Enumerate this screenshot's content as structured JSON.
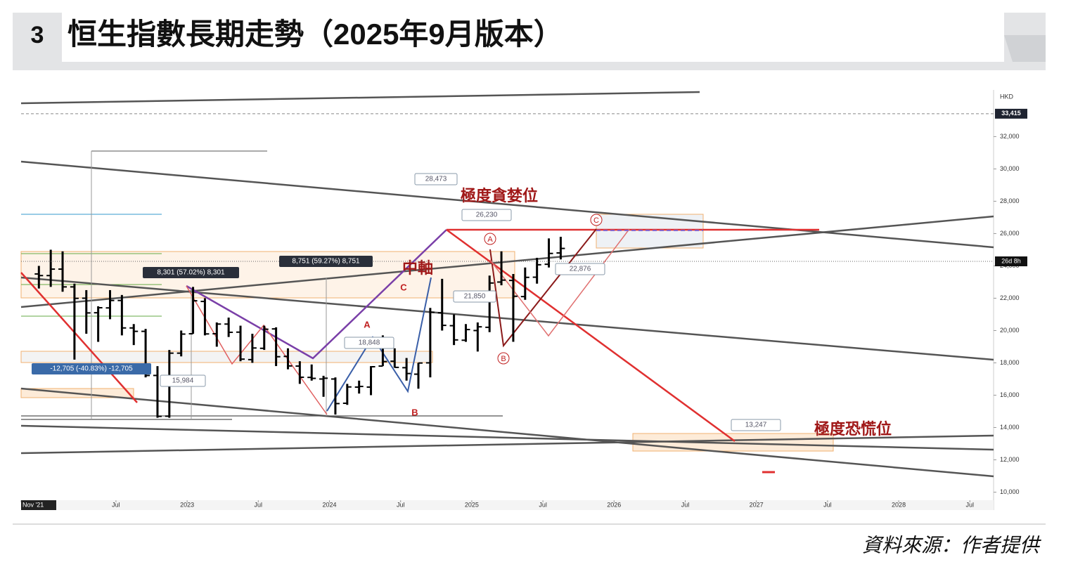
{
  "figure_number": "3",
  "title": "恒生指數長期走勢（2025年9月版本）",
  "source": "資料來源：作者提供",
  "chart_data": {
    "type": "ohlc",
    "currency": "HKD",
    "color": "#000000",
    "x": [
      "2021-12",
      "2022-01",
      "2022-02",
      "2022-03",
      "2022-04",
      "2022-05",
      "2022-06",
      "2022-07",
      "2022-08",
      "2022-09",
      "2022-10",
      "2022-11",
      "2022-12",
      "2023-01",
      "2023-02",
      "2023-03",
      "2023-04",
      "2023-05",
      "2023-06",
      "2023-07",
      "2023-08",
      "2023-09",
      "2023-10",
      "2023-11",
      "2023-12",
      "2024-01",
      "2024-02",
      "2024-03",
      "2024-04",
      "2024-05",
      "2024-06",
      "2024-07",
      "2024-08",
      "2024-09",
      "2024-10",
      "2024-11",
      "2024-12",
      "2025-01",
      "2025-02",
      "2025-03",
      "2025-04",
      "2025-05",
      "2025-06",
      "2025-07",
      "2025-08"
    ],
    "open": [
      23500,
      23400,
      23800,
      22700,
      22000,
      21100,
      21400,
      21860,
      20160,
      19950,
      17220,
      14700,
      18600,
      19800,
      21800,
      19800,
      20400,
      19900,
      18200,
      18900,
      20100,
      18400,
      17800,
      17100,
      17000,
      17000,
      15500,
      16500,
      16500,
      17800,
      18100,
      17700,
      17300,
      18000,
      21100,
      20300,
      19400,
      20000,
      20200,
      23000,
      23100,
      22100,
      23300,
      24100,
      24800
    ],
    "high": [
      24000,
      25000,
      24900,
      22900,
      22500,
      21500,
      22500,
      22200,
      20400,
      20100,
      17800,
      18800,
      20000,
      22700,
      22000,
      20500,
      20800,
      20300,
      19800,
      20300,
      20200,
      18900,
      18100,
      17900,
      17200,
      17100,
      16700,
      16900,
      17800,
      19700,
      18900,
      18300,
      18000,
      21400,
      23200,
      21000,
      20400,
      20500,
      23400,
      24900,
      23500,
      23900,
      24500,
      25700,
      25800
    ],
    "low": [
      22600,
      22700,
      22400,
      18200,
      19800,
      19300,
      20700,
      19700,
      19100,
      17100,
      14600,
      14600,
      18400,
      19800,
      19700,
      19000,
      19600,
      18100,
      18000,
      18800,
      17800,
      17600,
      16700,
      16900,
      15900,
      14800,
      15400,
      16100,
      16000,
      17800,
      17700,
      16900,
      16400,
      17100,
      20000,
      19100,
      19300,
      18700,
      19900,
      22800,
      19300,
      21900,
      22900,
      23900,
      24400
    ],
    "close": [
      23400,
      23800,
      22700,
      21990,
      21090,
      21410,
      21860,
      20160,
      19950,
      17220,
      14690,
      18600,
      19780,
      21840,
      19790,
      20400,
      19890,
      18230,
      18920,
      20080,
      18380,
      17810,
      17110,
      17040,
      17050,
      15480,
      16510,
      16540,
      17760,
      18080,
      17720,
      17340,
      17990,
      21130,
      20320,
      19420,
      20060,
      20230,
      22940,
      23120,
      22120,
      23290,
      24070,
      24770,
      25080
    ],
    "xlim": [
      "2021-11",
      "2028-09"
    ],
    "xticks": [
      {
        "value": "2021-11",
        "label": "Nov '21"
      },
      {
        "value": "2022-07",
        "label": "Jul"
      },
      {
        "value": "2023-01",
        "label": "2023"
      },
      {
        "value": "2023-07",
        "label": "Jul"
      },
      {
        "value": "2024-01",
        "label": "2024"
      },
      {
        "value": "2024-07",
        "label": "Jul"
      },
      {
        "value": "2025-01",
        "label": "2025"
      },
      {
        "value": "2025-07",
        "label": "Jul"
      },
      {
        "value": "2026-01",
        "label": "2026"
      },
      {
        "value": "2026-07",
        "label": "Jul"
      },
      {
        "value": "2027-01",
        "label": "2027"
      },
      {
        "value": "2027-07",
        "label": "Jul"
      },
      {
        "value": "2028-01",
        "label": "2028"
      },
      {
        "value": "2028-07",
        "label": "Jul"
      }
    ],
    "ylim": [
      9500,
      34800
    ],
    "yticks": [
      {
        "value": 10000,
        "label": "10,000"
      },
      {
        "value": 12000,
        "label": "12,000"
      },
      {
        "value": 14000,
        "label": "14,000"
      },
      {
        "value": 16000,
        "label": "16,000"
      },
      {
        "value": 18000,
        "label": "18,000"
      },
      {
        "value": 20000,
        "label": "20,000"
      },
      {
        "value": 22000,
        "label": "22,000"
      },
      {
        "value": 24000,
        "label": "24,000"
      },
      {
        "value": 26000,
        "label": "26,000"
      },
      {
        "value": 28000,
        "label": "28,000"
      },
      {
        "value": 30000,
        "label": "30,000"
      },
      {
        "value": 32000,
        "label": "32,000"
      }
    ],
    "price_line": {
      "value": 33415,
      "label": "33,415"
    },
    "countdown": "26d 8h",
    "annotations": {
      "greed_zone": "極度貪婪位",
      "mid_axis": "中軸",
      "panic_zone": "極度恐慌位",
      "wave_labels": [
        "A",
        "B",
        "C",
        "A",
        "B",
        "C"
      ],
      "price_callouts": [
        "28,473",
        "26,230",
        "22,876",
        "21,850",
        "18,848",
        "15,984",
        "13,247"
      ],
      "measure_callouts": [
        "8,301 (57.02%) 8,301",
        "8,751 (59.27%) 8,751",
        "-12,705 (-40.83%) -12,705"
      ]
    }
  }
}
